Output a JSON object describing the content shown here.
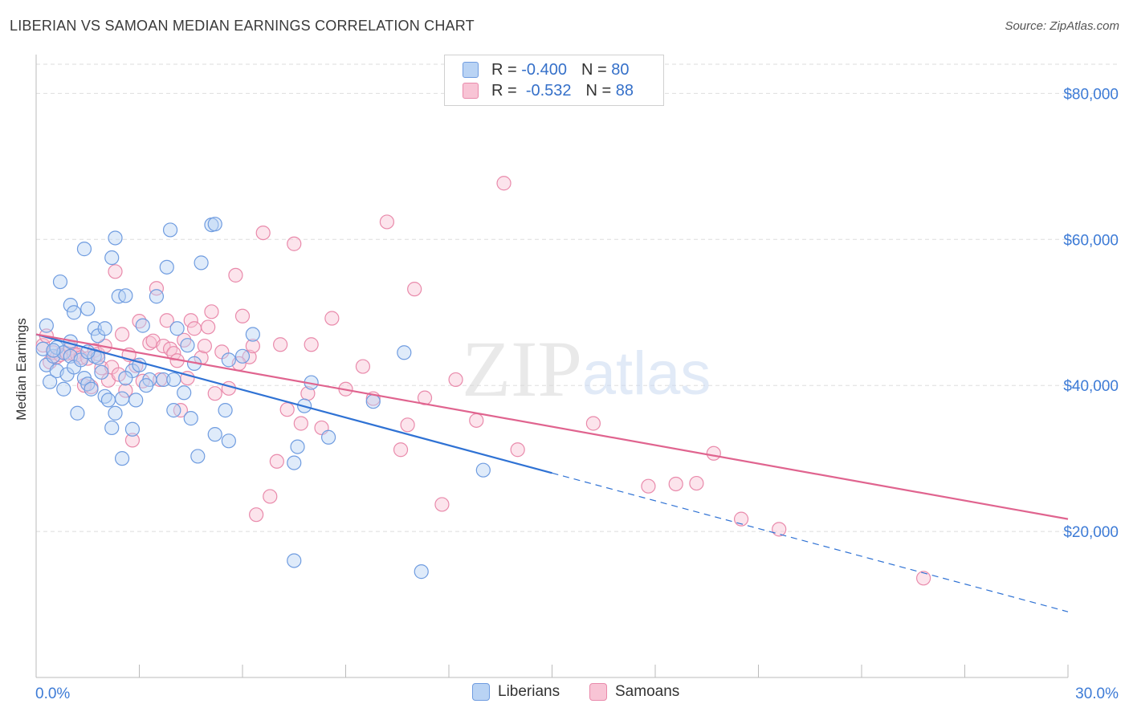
{
  "header": {
    "title": "LIBERIAN VS SAMOAN MEDIAN EARNINGS CORRELATION CHART",
    "source": "Source: ZipAtlas.com"
  },
  "watermark": {
    "zip": "ZIP",
    "atlas": "atlas"
  },
  "legend_top": {
    "r_label": "R =",
    "n_label": "N =",
    "rows": [
      {
        "r": "-0.400",
        "n": "80",
        "swatch_fill": "#b9d3f4",
        "swatch_stroke": "#6f9ce0"
      },
      {
        "r": "-0.532",
        "n": "88",
        "swatch_fill": "#f8c4d5",
        "swatch_stroke": "#e98aab"
      }
    ]
  },
  "legend_bottom": [
    {
      "label": "Liberians",
      "fill": "#b9d3f4",
      "stroke": "#6f9ce0"
    },
    {
      "label": "Samoans",
      "fill": "#f8c4d5",
      "stroke": "#e98aab"
    }
  ],
  "chart_data": {
    "type": "scatter",
    "title": "LIBERIAN VS SAMOAN MEDIAN EARNINGS CORRELATION CHART",
    "ylabel": "Median Earnings",
    "xlabel": "",
    "xlim": [
      0,
      30
    ],
    "ylim": [
      0,
      84000
    ],
    "x_tick_labels": [
      "0.0%",
      "30.0%"
    ],
    "y_tick_labels": [
      "$80,000",
      "$60,000",
      "$40,000",
      "$20,000"
    ],
    "y_tick_values": [
      80000,
      60000,
      40000,
      20000
    ],
    "grid": "horizontal dashed",
    "legend_position": "top-center",
    "colors": {
      "liberians": "#6f9ce0",
      "samoans": "#e98aab",
      "liberian_line": "#2f72d4",
      "samoan_line": "#e0648f",
      "axis_labels": "#3d7bd6"
    },
    "series": [
      {
        "name": "Liberians",
        "trend": {
          "x_start": 0,
          "y_start": 47000,
          "x_solid_end": 15,
          "x_end": 30,
          "y_end": 9000
        },
        "points": [
          [
            0.2,
            45000
          ],
          [
            0.3,
            42800
          ],
          [
            0.3,
            48200
          ],
          [
            0.4,
            40500
          ],
          [
            0.5,
            44000
          ],
          [
            0.6,
            45200
          ],
          [
            0.6,
            42000
          ],
          [
            0.7,
            54200
          ],
          [
            0.8,
            39500
          ],
          [
            0.8,
            44500
          ],
          [
            0.9,
            41500
          ],
          [
            1.0,
            44000
          ],
          [
            1.0,
            51000
          ],
          [
            1.1,
            42500
          ],
          [
            1.1,
            50000
          ],
          [
            1.2,
            36200
          ],
          [
            1.3,
            43500
          ],
          [
            1.4,
            41000
          ],
          [
            1.4,
            58700
          ],
          [
            1.5,
            40200
          ],
          [
            1.5,
            50500
          ],
          [
            1.6,
            39500
          ],
          [
            1.7,
            47800
          ],
          [
            1.7,
            44000
          ],
          [
            1.8,
            43800
          ],
          [
            1.8,
            46800
          ],
          [
            1.9,
            41800
          ],
          [
            2.0,
            47800
          ],
          [
            2.0,
            38500
          ],
          [
            2.1,
            38000
          ],
          [
            2.2,
            34200
          ],
          [
            2.2,
            57500
          ],
          [
            2.3,
            36200
          ],
          [
            2.3,
            60200
          ],
          [
            2.4,
            52200
          ],
          [
            2.5,
            30000
          ],
          [
            2.5,
            38200
          ],
          [
            2.6,
            52300
          ],
          [
            2.8,
            42000
          ],
          [
            2.8,
            34000
          ],
          [
            2.9,
            38000
          ],
          [
            3.0,
            42800
          ],
          [
            3.1,
            48200
          ],
          [
            3.3,
            40800
          ],
          [
            3.5,
            52200
          ],
          [
            3.7,
            40800
          ],
          [
            3.8,
            56200
          ],
          [
            3.9,
            61300
          ],
          [
            4.0,
            40800
          ],
          [
            4.0,
            36600
          ],
          [
            4.1,
            47800
          ],
          [
            4.3,
            39000
          ],
          [
            4.4,
            45500
          ],
          [
            4.5,
            35500
          ],
          [
            4.6,
            43000
          ],
          [
            4.7,
            30300
          ],
          [
            4.8,
            56800
          ],
          [
            5.1,
            62000
          ],
          [
            5.2,
            62100
          ],
          [
            5.2,
            33300
          ],
          [
            5.5,
            36600
          ],
          [
            5.6,
            32400
          ],
          [
            5.6,
            43500
          ],
          [
            6.3,
            47000
          ],
          [
            7.5,
            16000
          ],
          [
            7.5,
            29400
          ],
          [
            7.6,
            31600
          ],
          [
            7.8,
            37200
          ],
          [
            8.0,
            40400
          ],
          [
            8.5,
            32900
          ],
          [
            9.8,
            37800
          ],
          [
            10.7,
            44500
          ],
          [
            11.2,
            14500
          ],
          [
            13.0,
            28400
          ],
          [
            1.5,
            44600
          ],
          [
            0.5,
            44800
          ],
          [
            1.0,
            46000
          ],
          [
            2.6,
            41000
          ],
          [
            3.2,
            40000
          ],
          [
            6.0,
            44000
          ]
        ]
      },
      {
        "name": "Samoans",
        "trend": {
          "x_start": 0,
          "y_start": 47000,
          "x_end": 30,
          "y_end": 21700
        },
        "points": [
          [
            0.2,
            45500
          ],
          [
            0.3,
            46800
          ],
          [
            0.4,
            43200
          ],
          [
            0.5,
            44500
          ],
          [
            0.6,
            43900
          ],
          [
            0.7,
            44200
          ],
          [
            0.9,
            44400
          ],
          [
            1.0,
            45100
          ],
          [
            1.1,
            44300
          ],
          [
            1.2,
            44200
          ],
          [
            1.3,
            43800
          ],
          [
            1.5,
            43700
          ],
          [
            1.6,
            39800
          ],
          [
            1.7,
            44800
          ],
          [
            1.8,
            44300
          ],
          [
            1.9,
            42400
          ],
          [
            2.0,
            45400
          ],
          [
            2.1,
            40700
          ],
          [
            2.2,
            42500
          ],
          [
            2.3,
            55600
          ],
          [
            2.4,
            41500
          ],
          [
            2.5,
            47000
          ],
          [
            2.6,
            39300
          ],
          [
            2.8,
            32500
          ],
          [
            2.9,
            42700
          ],
          [
            3.0,
            48800
          ],
          [
            3.1,
            40600
          ],
          [
            3.3,
            45800
          ],
          [
            3.4,
            46100
          ],
          [
            3.5,
            53300
          ],
          [
            3.6,
            40800
          ],
          [
            3.7,
            45400
          ],
          [
            3.8,
            48900
          ],
          [
            3.9,
            45000
          ],
          [
            4.0,
            44400
          ],
          [
            4.1,
            43400
          ],
          [
            4.2,
            36600
          ],
          [
            4.3,
            46200
          ],
          [
            4.5,
            48900
          ],
          [
            4.6,
            47800
          ],
          [
            4.8,
            43800
          ],
          [
            4.9,
            45400
          ],
          [
            5.0,
            48000
          ],
          [
            5.1,
            50100
          ],
          [
            5.2,
            38900
          ],
          [
            5.4,
            44600
          ],
          [
            5.6,
            39600
          ],
          [
            5.8,
            55100
          ],
          [
            6.0,
            49500
          ],
          [
            6.2,
            43900
          ],
          [
            6.3,
            45400
          ],
          [
            6.4,
            22300
          ],
          [
            6.6,
            60900
          ],
          [
            6.8,
            24800
          ],
          [
            7.0,
            29600
          ],
          [
            7.1,
            45600
          ],
          [
            7.3,
            36700
          ],
          [
            7.5,
            59400
          ],
          [
            7.7,
            34800
          ],
          [
            7.9,
            38900
          ],
          [
            8.0,
            45600
          ],
          [
            8.3,
            34200
          ],
          [
            8.6,
            49200
          ],
          [
            9.0,
            39500
          ],
          [
            9.5,
            42600
          ],
          [
            9.8,
            38200
          ],
          [
            10.2,
            62400
          ],
          [
            10.6,
            31200
          ],
          [
            10.8,
            34600
          ],
          [
            11.0,
            53200
          ],
          [
            11.3,
            38300
          ],
          [
            11.8,
            23700
          ],
          [
            12.2,
            40800
          ],
          [
            12.8,
            35200
          ],
          [
            13.6,
            67700
          ],
          [
            14.0,
            31200
          ],
          [
            16.2,
            34800
          ],
          [
            17.8,
            26200
          ],
          [
            18.6,
            26500
          ],
          [
            19.2,
            26600
          ],
          [
            19.7,
            30700
          ],
          [
            20.5,
            21700
          ],
          [
            21.6,
            20300
          ],
          [
            25.8,
            13600
          ],
          [
            1.4,
            40000
          ],
          [
            2.7,
            44200
          ],
          [
            4.4,
            41000
          ],
          [
            5.9,
            43000
          ]
        ]
      }
    ]
  }
}
